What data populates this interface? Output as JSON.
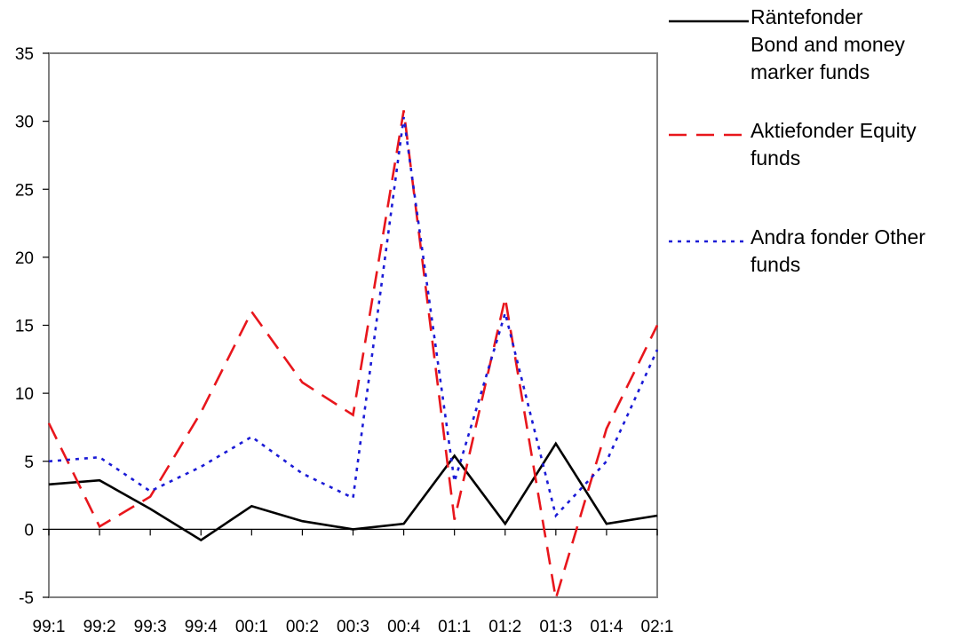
{
  "chart_data": {
    "type": "line",
    "title": "",
    "xlabel": "",
    "ylabel": "",
    "categories": [
      "99:1",
      "99:2",
      "99:3",
      "99:4",
      "00:1",
      "00:2",
      "00:3",
      "00:4",
      "01:1",
      "01:2",
      "01:3",
      "01:4",
      "02:1"
    ],
    "ylim": [
      -5,
      35
    ],
    "yticks": [
      -5,
      0,
      5,
      10,
      15,
      20,
      25,
      30,
      35
    ],
    "ytick_labels": [
      "-5",
      "0",
      "5",
      "10",
      "15",
      "20",
      "25",
      "30",
      "35"
    ],
    "grid": false,
    "legend_position": "right",
    "series": [
      {
        "name": "Räntefonder Bond and money marker funds",
        "color": "#000000",
        "line_style": "solid",
        "values": [
          3.3,
          3.6,
          1.5,
          -0.8,
          1.7,
          0.6,
          0.0,
          0.4,
          5.4,
          0.4,
          6.3,
          0.4,
          1.0
        ]
      },
      {
        "name": "Aktiefonder Equity funds",
        "color": "#e8161c",
        "line_style": "dashed",
        "values": [
          7.8,
          0.2,
          2.4,
          8.6,
          16.0,
          10.8,
          8.4,
          30.8,
          0.7,
          17.0,
          -5.1,
          7.4,
          15.0
        ]
      },
      {
        "name": "Andra fonder Other funds",
        "color": "#1b1bd6",
        "line_style": "dotted",
        "values": [
          5.0,
          5.3,
          2.8,
          4.6,
          6.8,
          4.1,
          2.3,
          30.3,
          3.5,
          15.9,
          1.0,
          5.0,
          13.2
        ]
      }
    ]
  },
  "legend": [
    {
      "lines": [
        "Räntefonder",
        "Bond and money",
        "marker funds"
      ],
      "color": "#000000",
      "style": "solid"
    },
    {
      "lines": [
        "Aktiefonder Equity",
        "funds"
      ],
      "color": "#e8161c",
      "style": "dashed"
    },
    {
      "lines": [
        "Andra fonder Other",
        "funds"
      ],
      "color": "#1b1bd6",
      "style": "dotted"
    }
  ]
}
